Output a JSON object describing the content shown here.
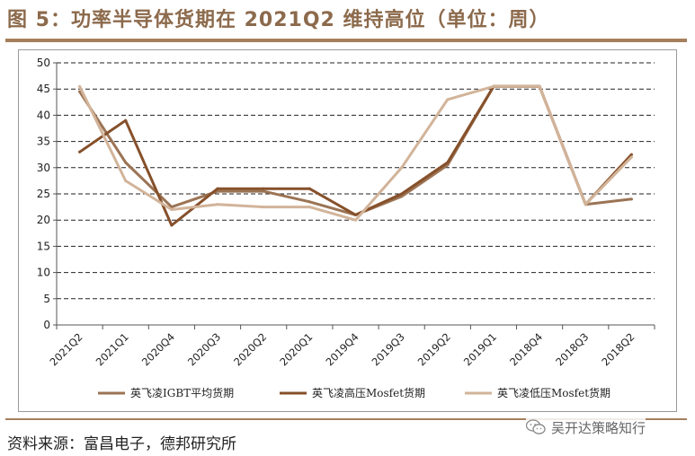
{
  "figure": {
    "title": "图 5：功率半导体货期在 2021Q2 维持高位（单位：周）",
    "source": "资料来源：富昌电子，德邦研究所",
    "watermark": "吴开达策略知行"
  },
  "colors": {
    "accent": "#8c6a4c",
    "rule": "#a67f5d",
    "igbt": "#9b7455",
    "hv_mosfet": "#86502a",
    "lv_mosfet": "#d2b49a"
  },
  "chart_data": {
    "type": "line",
    "title": "功率半导体货期在 2021Q2 维持高位（单位：周）",
    "xlabel": "",
    "ylabel": "周",
    "ylim": [
      0,
      50
    ],
    "yticks": [
      0,
      5,
      10,
      15,
      20,
      25,
      30,
      35,
      40,
      45,
      50
    ],
    "grid": true,
    "legend_position": "bottom",
    "categories": [
      "2021Q2",
      "2021Q1",
      "2020Q4",
      "2020Q3",
      "2020Q2",
      "2020Q1",
      "2019Q4",
      "2019Q3",
      "2019Q2",
      "2019Q1",
      "2018Q4",
      "2018Q3",
      "2018Q2"
    ],
    "series": [
      {
        "name": "英飞凌IGBT平均货期",
        "key": "igbt",
        "values": [
          44.5,
          31,
          22.5,
          25.5,
          25.5,
          23.5,
          21,
          24.5,
          30.5,
          45.5,
          45.5,
          23,
          24
        ]
      },
      {
        "name": "英飞凌高压Mosfet货期",
        "key": "hv_mosfet",
        "values": [
          33,
          39,
          19,
          26,
          26,
          26,
          21,
          25,
          31,
          45.5,
          45.5,
          23,
          32.5
        ]
      },
      {
        "name": "英飞凌低压Mosfet货期",
        "key": "lv_mosfet",
        "values": [
          45.5,
          27.5,
          22,
          23,
          22.5,
          22.5,
          20,
          30,
          43,
          45.5,
          45.5,
          23,
          32
        ]
      }
    ]
  }
}
